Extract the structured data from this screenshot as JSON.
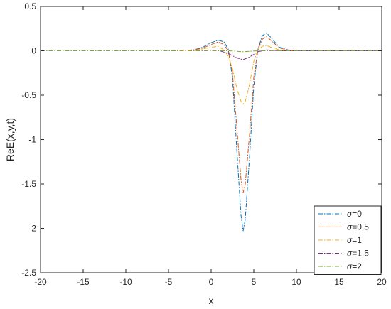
{
  "chart_data": {
    "type": "line",
    "title": "",
    "xlabel": "x",
    "ylabel": "ReE(x,y,t)",
    "xlim": [
      -20,
      20
    ],
    "ylim": [
      -2.5,
      0.5
    ],
    "xticks": [
      -20,
      -15,
      -10,
      -5,
      0,
      5,
      10,
      15,
      20
    ],
    "yticks": [
      0.5,
      0,
      -0.5,
      -1,
      -1.5,
      -2,
      -2.5
    ],
    "grid": false,
    "legend_position": "bottom-right",
    "line_style": "dash-dot",
    "series": [
      {
        "name": "σ=0",
        "legend_symbol": "σ",
        "legend_value": "=0",
        "color": "#0072BD",
        "points": [
          [
            -20,
            0
          ],
          [
            -5,
            0
          ],
          [
            -2,
            0.01
          ],
          [
            -1,
            0.04
          ],
          [
            0,
            0.09
          ],
          [
            0.8,
            0.12
          ],
          [
            1.5,
            0.1
          ],
          [
            2,
            0.02
          ],
          [
            2.5,
            -0.3
          ],
          [
            3,
            -1.1
          ],
          [
            3.5,
            -1.85
          ],
          [
            3.75,
            -2.03
          ],
          [
            4,
            -1.9
          ],
          [
            4.5,
            -1.2
          ],
          [
            5,
            -0.4
          ],
          [
            5.5,
            0.02
          ],
          [
            6,
            0.17
          ],
          [
            6.5,
            0.2
          ],
          [
            7,
            0.15
          ],
          [
            8,
            0.04
          ],
          [
            9,
            0.01
          ],
          [
            10,
            0
          ],
          [
            20,
            0
          ]
        ]
      },
      {
        "name": "σ=0.5",
        "legend_symbol": "σ",
        "legend_value": "=0.5",
        "color": "#D95319",
        "points": [
          [
            -20,
            0
          ],
          [
            -5,
            0
          ],
          [
            -2,
            0.01
          ],
          [
            -1,
            0.03
          ],
          [
            0,
            0.07
          ],
          [
            0.8,
            0.1
          ],
          [
            1.5,
            0.07
          ],
          [
            2,
            0
          ],
          [
            2.5,
            -0.25
          ],
          [
            3,
            -0.85
          ],
          [
            3.5,
            -1.45
          ],
          [
            3.75,
            -1.6
          ],
          [
            4,
            -1.5
          ],
          [
            4.5,
            -0.95
          ],
          [
            5,
            -0.3
          ],
          [
            5.5,
            0.02
          ],
          [
            6,
            0.13
          ],
          [
            6.5,
            0.16
          ],
          [
            7,
            0.12
          ],
          [
            8,
            0.03
          ],
          [
            9,
            0.01
          ],
          [
            10,
            0
          ],
          [
            20,
            0
          ]
        ]
      },
      {
        "name": "σ=1",
        "legend_symbol": "σ",
        "legend_value": "=1",
        "color": "#EDB120",
        "points": [
          [
            -20,
            0
          ],
          [
            -5,
            0
          ],
          [
            -2,
            0
          ],
          [
            -1,
            0.02
          ],
          [
            0,
            0.04
          ],
          [
            0.8,
            0.05
          ],
          [
            1.5,
            0.01
          ],
          [
            2,
            -0.06
          ],
          [
            2.5,
            -0.2
          ],
          [
            3,
            -0.42
          ],
          [
            3.5,
            -0.57
          ],
          [
            3.75,
            -0.6
          ],
          [
            4,
            -0.57
          ],
          [
            4.5,
            -0.38
          ],
          [
            5,
            -0.12
          ],
          [
            5.5,
            0.01
          ],
          [
            6,
            0.05
          ],
          [
            6.5,
            0.06
          ],
          [
            7,
            0.04
          ],
          [
            8,
            0.01
          ],
          [
            9,
            0
          ],
          [
            20,
            0
          ]
        ]
      },
      {
        "name": "σ=1.5",
        "legend_symbol": "σ",
        "legend_value": "=1.5",
        "color": "#7E2F8E",
        "points": [
          [
            -20,
            0
          ],
          [
            -2,
            0
          ],
          [
            0,
            0.005
          ],
          [
            1,
            0
          ],
          [
            2,
            -0.03
          ],
          [
            3,
            -0.08
          ],
          [
            3.75,
            -0.1
          ],
          [
            4.5,
            -0.07
          ],
          [
            5.5,
            -0.01
          ],
          [
            6.5,
            0.01
          ],
          [
            8,
            0
          ],
          [
            20,
            0
          ]
        ]
      },
      {
        "name": "σ=2",
        "legend_symbol": "σ",
        "legend_value": "=2",
        "color": "#77AC30",
        "points": [
          [
            -20,
            0
          ],
          [
            2,
            0
          ],
          [
            3.75,
            -0.01
          ],
          [
            5.5,
            0
          ],
          [
            20,
            0
          ]
        ]
      }
    ]
  }
}
